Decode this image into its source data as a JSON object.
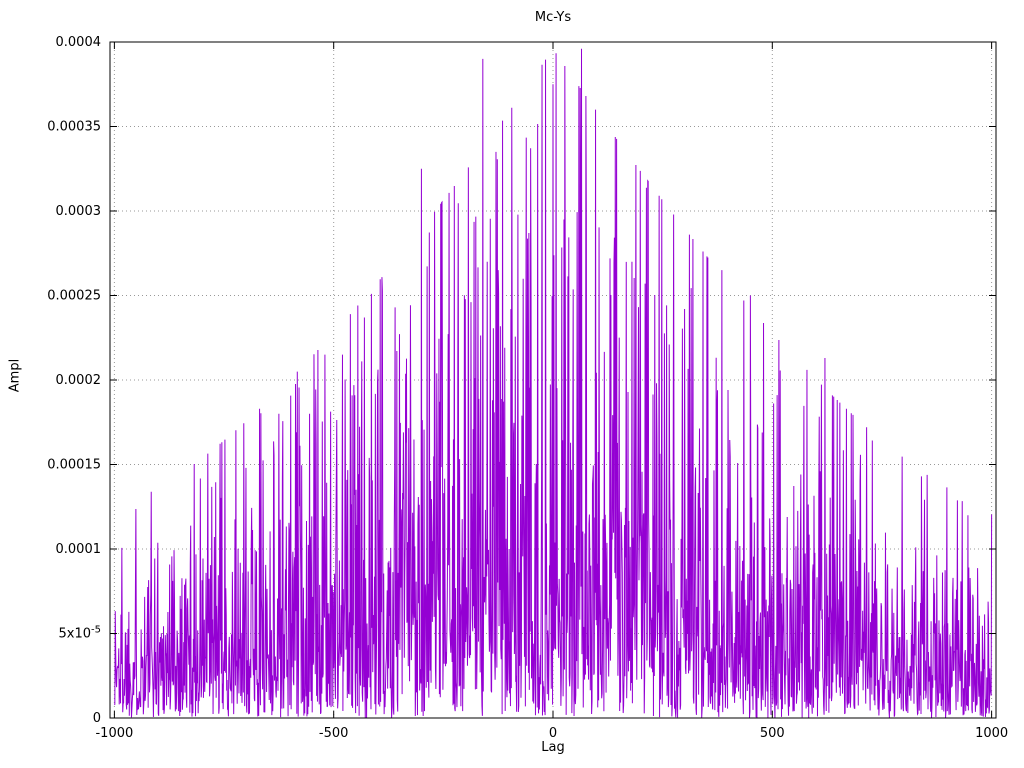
{
  "chart_data": {
    "type": "line",
    "subtype": "dense-noisy-spikes",
    "title": "Mc-Ys",
    "xlabel": "Lag",
    "ylabel": "Ampl",
    "xlim": [
      -1010,
      1010
    ],
    "ylim": [
      0,
      0.0004
    ],
    "x_tick_values": [
      -1000,
      -500,
      0,
      500,
      1000
    ],
    "x_tick_labels": [
      "-1000",
      "-500",
      "0",
      "500",
      "1000"
    ],
    "y_tick_values": [
      0,
      5e-05,
      0.0001,
      0.00015,
      0.0002,
      0.00025,
      0.0003,
      0.00035,
      0.0004
    ],
    "y_tick_labels": [
      "0",
      "5x10^-5",
      "0.0001",
      "0.00015",
      "0.0002",
      "0.00025",
      "0.0003",
      "0.00035",
      "0.0004"
    ],
    "grid": true,
    "legend": "none",
    "line_color": "#9400d3",
    "grid_color": "#999999",
    "border_color": "#000000",
    "x_start": -1000,
    "x_end": 1000,
    "n_points": 2001,
    "seed": 1337,
    "envelope": {
      "description": "amplitude envelope of |noise|, peaks at lag 0 and decays toward +/-1000",
      "base": 3.8e-05,
      "amp": 8.2e-05,
      "power": 1.4,
      "cap": 3.3
    },
    "notable_peaks": [
      [
        -700,
        0.000148
      ],
      [
        -625,
        0.00018
      ],
      [
        -555,
        0.00018
      ],
      [
        -520,
        0.000215
      ],
      [
        -480,
        0.000215
      ],
      [
        -430,
        0.000237
      ],
      [
        -360,
        0.000243
      ],
      [
        -300,
        0.000325
      ],
      [
        -160,
        0.00039
      ],
      [
        -150,
        0.00027
      ],
      [
        -125,
        0.000265
      ],
      [
        -55,
        0.000287
      ],
      [
        0,
        0.000375
      ],
      [
        25,
        0.000295
      ],
      [
        65,
        0.000396
      ],
      [
        130,
        0.000272
      ],
      [
        180,
        0.00027
      ],
      [
        210,
        0.000257
      ],
      [
        300,
        0.000242
      ],
      [
        385,
        0.000265
      ],
      [
        450,
        0.00025
      ],
      [
        620,
        0.000213
      ],
      [
        700,
        0.00014
      ],
      [
        840,
        0.000143
      ]
    ]
  }
}
